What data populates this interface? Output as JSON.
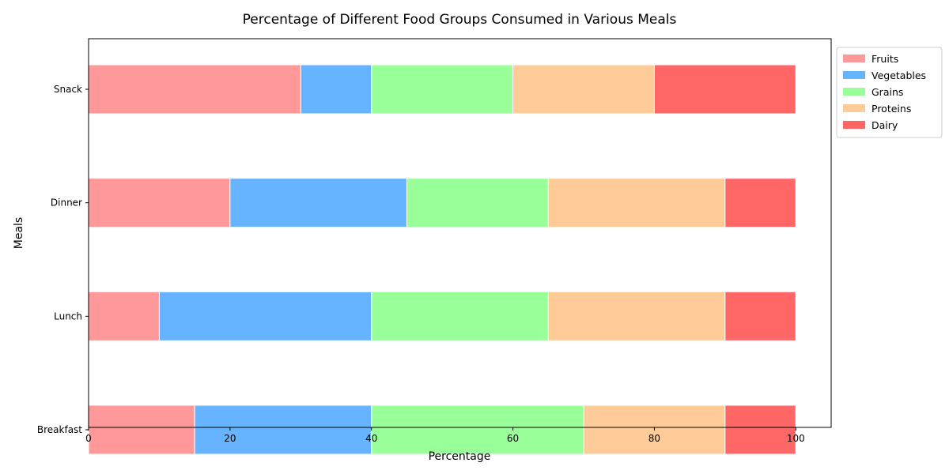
{
  "chart_data": {
    "type": "bar",
    "orientation": "horizontal",
    "stacked": true,
    "title": "Percentage of Different Food Groups Consumed in Various Meals",
    "xlabel": "Percentage",
    "ylabel": "Meals",
    "xlim": [
      0,
      105
    ],
    "xticks": [
      "0",
      "20",
      "40",
      "60",
      "80",
      "100"
    ],
    "categories": [
      "Breakfast",
      "Lunch",
      "Dinner",
      "Snack"
    ],
    "series": [
      {
        "name": "Fruits",
        "color": "#ff9999",
        "values": [
          15,
          10,
          20,
          30
        ]
      },
      {
        "name": "Vegetables",
        "color": "#66b3ff",
        "values": [
          25,
          30,
          25,
          10
        ]
      },
      {
        "name": "Grains",
        "color": "#99ff99",
        "values": [
          30,
          25,
          20,
          20
        ]
      },
      {
        "name": "Proteins",
        "color": "#ffcc99",
        "values": [
          20,
          25,
          25,
          20
        ]
      },
      {
        "name": "Dairy",
        "color": "#ff6666",
        "values": [
          10,
          10,
          10,
          20
        ]
      }
    ],
    "legend_position": "outside-top-right",
    "grid": false
  }
}
